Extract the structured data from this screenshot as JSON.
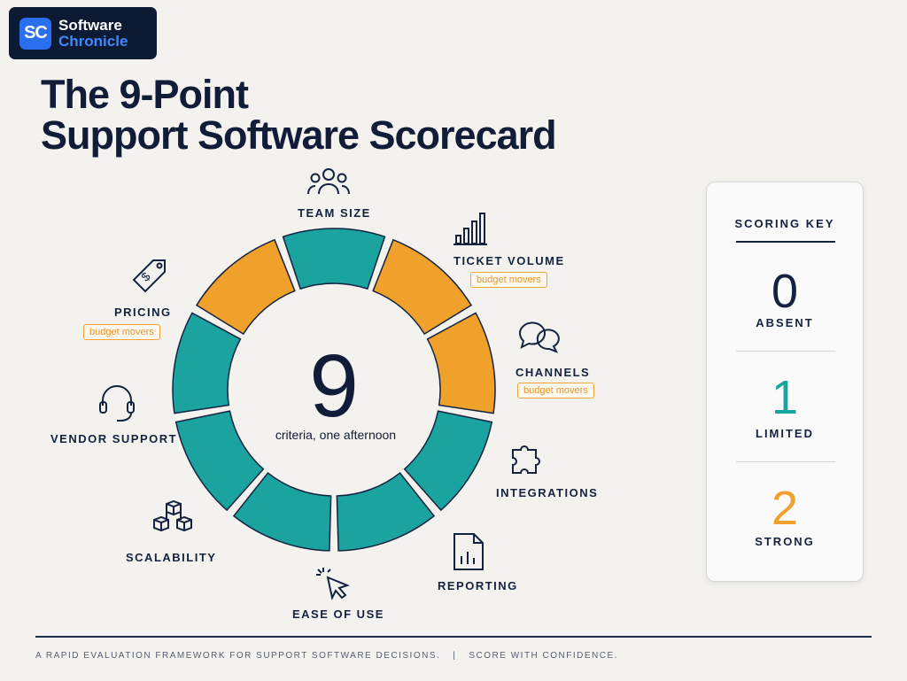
{
  "brand": {
    "badge": "SC",
    "line1": "Software",
    "line2": "Chronicle"
  },
  "title": {
    "line1": "The 9-Point",
    "line2": "Support Software Scorecard"
  },
  "center": {
    "number": "9",
    "caption": "criteria, one afternoon"
  },
  "colors": {
    "teal": "#1ba3a0",
    "orange": "#f0a12c",
    "navy": "#13233f"
  },
  "criteria": [
    {
      "label": "TEAM SIZE",
      "icon": "people-icon",
      "color": "teal",
      "tag": ""
    },
    {
      "label": "TICKET VOLUME",
      "icon": "bar-chart-icon",
      "color": "orange",
      "tag": "budget movers"
    },
    {
      "label": "CHANNELS",
      "icon": "chat-bubbles-icon",
      "color": "orange",
      "tag": "budget movers"
    },
    {
      "label": "INTEGRATIONS",
      "icon": "puzzle-icon",
      "color": "teal",
      "tag": ""
    },
    {
      "label": "REPORTING",
      "icon": "report-icon",
      "color": "teal",
      "tag": ""
    },
    {
      "label": "EASE OF USE",
      "icon": "cursor-click-icon",
      "color": "teal",
      "tag": ""
    },
    {
      "label": "SCALABILITY",
      "icon": "cubes-icon",
      "color": "teal",
      "tag": ""
    },
    {
      "label": "VENDOR SUPPORT",
      "icon": "headset-icon",
      "color": "teal",
      "tag": ""
    },
    {
      "label": "PRICING",
      "icon": "price-tag-icon",
      "color": "orange",
      "tag": "budget movers"
    }
  ],
  "scoring_key": {
    "title": "SCORING KEY",
    "levels": [
      {
        "value": "0",
        "label": "ABSENT",
        "color": "#13233f"
      },
      {
        "value": "1",
        "label": "LIMITED",
        "color": "#1ba3a0"
      },
      {
        "value": "2",
        "label": "STRONG",
        "color": "#f0a12c"
      }
    ]
  },
  "footer": {
    "left": "A RAPID EVALUATION FRAMEWORK FOR SUPPORT SOFTWARE DECISIONS.",
    "divider": "|",
    "right": "SCORE WITH CONFIDENCE."
  }
}
